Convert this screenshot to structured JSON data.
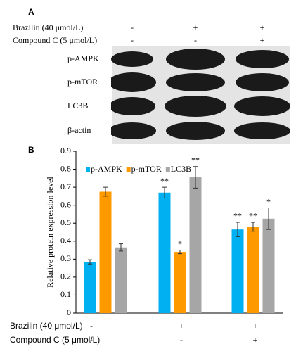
{
  "panel_a": {
    "label": "A",
    "conditions": [
      {
        "label": "Brazilin (40 μmol/L)",
        "marks": [
          "-",
          "+",
          "+"
        ]
      },
      {
        "label": "Compound C (5 μmol/L)",
        "marks": [
          "-",
          "-",
          "+"
        ]
      }
    ],
    "rows": [
      "p-AMPK",
      "p-mTOR",
      "LC3B",
      "β-actin"
    ]
  },
  "chart_data": {
    "type": "bar",
    "panel_label": "B",
    "y_label": "Relative protein expression level",
    "ylim": [
      0,
      0.9
    ],
    "yticks": [
      0,
      0.1,
      0.2,
      0.3,
      0.4,
      0.5,
      0.6,
      0.7,
      0.8,
      0.9
    ],
    "legend": "top",
    "series": [
      {
        "name": "p-AMPK",
        "color": "#00b0f0",
        "values": [
          0.285,
          0.67,
          0.465
        ],
        "errors": [
          0.012,
          0.03,
          0.04
        ],
        "annotations": [
          null,
          "**",
          "**"
        ]
      },
      {
        "name": "p-mTOR",
        "color": "#ff9900",
        "values": [
          0.675,
          0.34,
          0.48
        ],
        "errors": [
          0.025,
          0.01,
          0.025
        ],
        "annotations": [
          null,
          "*",
          "**"
        ]
      },
      {
        "name": "LC3B",
        "color": "#a6a6a6",
        "values": [
          0.365,
          0.755,
          0.525
        ],
        "errors": [
          0.02,
          0.06,
          0.06
        ],
        "annotations": [
          null,
          "**",
          "*"
        ]
      }
    ],
    "conditions": [
      {
        "label": "Brazilin (40 μmol/L)",
        "marks": [
          "-",
          "+",
          "+"
        ]
      },
      {
        "label": "Compound C (5 μmol/L)",
        "marks": [
          "-",
          "-",
          "+"
        ]
      }
    ]
  }
}
